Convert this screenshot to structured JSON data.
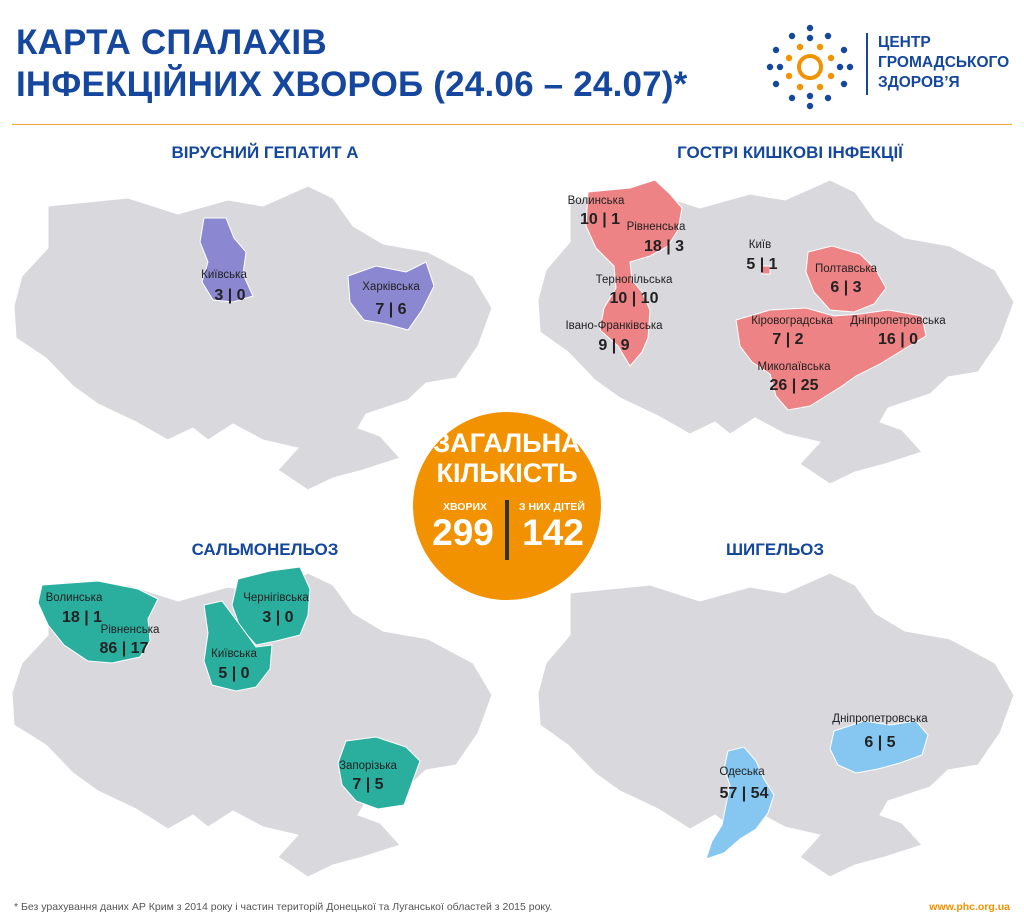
{
  "header": {
    "title_line1": "КАРТА СПАЛАХІВ",
    "title_line2": "ІНФЕКЦІЙНИХ ХВОРОБ (24.06 – 24.07)*",
    "org_line1": "ЦЕНТР",
    "org_line2": "ГРОМАДСЬКОГО",
    "org_line3": "ЗДОРОВ’Я"
  },
  "colors": {
    "brand_blue": "#14479d",
    "brand_orange": "#f39200",
    "map_gray": "#d8d8dd",
    "hepatitis": "#8c87d1",
    "intestinal": "#ee8385",
    "salmonellosis": "#2aaf9f",
    "shigellosis": "#86c7f1"
  },
  "maps": {
    "hepatitis": {
      "title": "ВІРУСНИЙ ГЕПАТИТ А",
      "regions": [
        {
          "label": "Київська",
          "value": "3 | 0"
        },
        {
          "label": "Харківська",
          "value": "7 | 6"
        }
      ]
    },
    "intestinal": {
      "title": "ГОСТРІ КИШКОВІ ІНФЕКЦІЇ",
      "regions": [
        {
          "label": "Волинська",
          "value": "10 | 1"
        },
        {
          "label": "Рівненська",
          "value": "18 | 3"
        },
        {
          "label": "Київ",
          "value": "5 | 1"
        },
        {
          "label": "Тернопільська",
          "value": "10 | 10"
        },
        {
          "label": "Полтавська",
          "value": "6 | 3"
        },
        {
          "label": "Івано-Франківська",
          "value": "9 | 9"
        },
        {
          "label": "Кіровоградська",
          "value": "7 | 2"
        },
        {
          "label": "Дніпропетровська",
          "value": "16 | 0"
        },
        {
          "label": "Миколаївська",
          "value": "26 | 25"
        }
      ]
    },
    "salmonellosis": {
      "title": "САЛЬМОНЕЛЬОЗ",
      "regions": [
        {
          "label": "Волинська",
          "value": "18 | 1"
        },
        {
          "label": "Рівненська",
          "value": "86 | 17"
        },
        {
          "label": "Чернігівська",
          "value": "3 | 0"
        },
        {
          "label": "Київська",
          "value": "5 | 0"
        },
        {
          "label": "Запорізька",
          "value": "7 | 5"
        }
      ]
    },
    "shigellosis": {
      "title": "ШИГЕЛЬОЗ",
      "regions": [
        {
          "label": "Дніпропетровська",
          "value": "6 | 5"
        },
        {
          "label": "Одеська",
          "value": "57 | 54"
        }
      ]
    }
  },
  "total": {
    "title_line1": "ЗАГАЛЬНА",
    "title_line2": "КІЛЬКІСТЬ",
    "sick_label": "ХВОРИХ",
    "sick_value": "299",
    "children_label": "З НИХ ДІТЕЙ",
    "children_value": "142"
  },
  "footnote": "* Без урахування даних АР Крим з 2014 року і частин територій Донецької та Луганської областей з 2015 року.",
  "website": "www.phc.org.ua"
}
